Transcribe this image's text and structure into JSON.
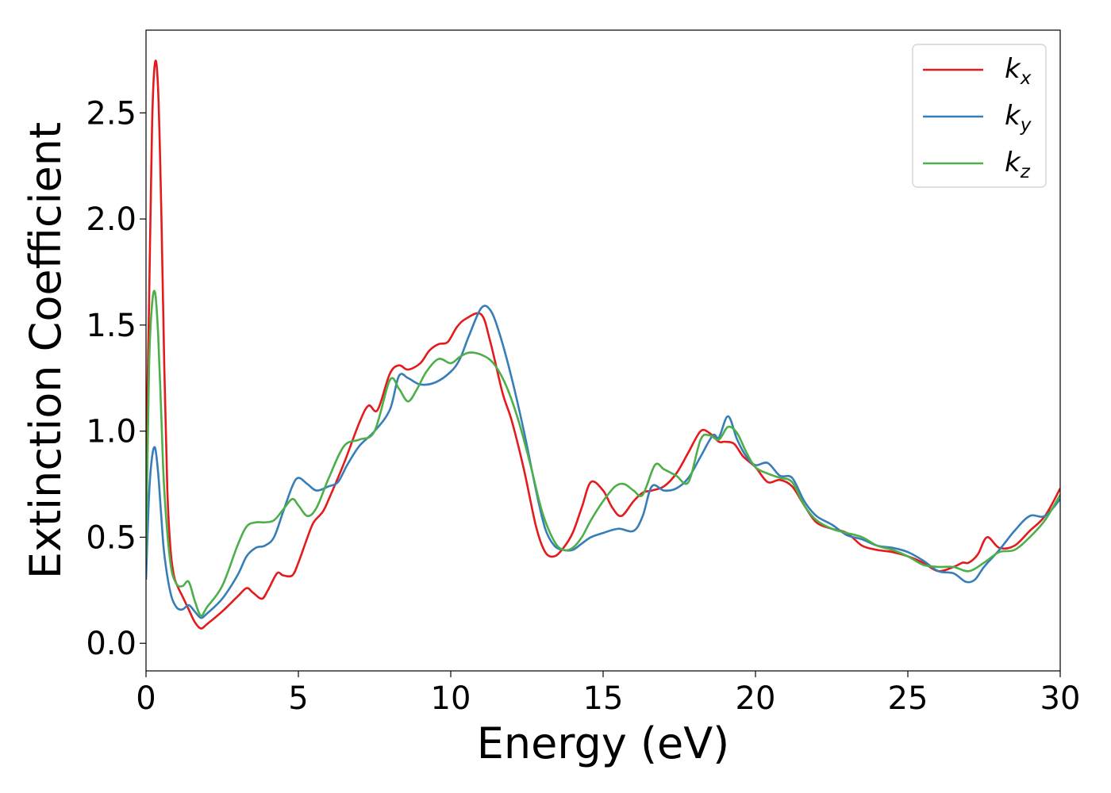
{
  "chart_data": {
    "type": "line",
    "title": "",
    "xlabel": "Energy (eV)",
    "ylabel": "Extinction Coefficient",
    "xlim": [
      0,
      30
    ],
    "ylim": [
      -0.13,
      2.89
    ],
    "xticks": [
      0,
      5,
      10,
      15,
      20,
      25,
      30
    ],
    "xtick_labels": [
      "0",
      "5",
      "10",
      "15",
      "20",
      "25",
      "30"
    ],
    "yticks": [
      0.0,
      0.5,
      1.0,
      1.5,
      2.0,
      2.5
    ],
    "ytick_labels": [
      "0.0",
      "0.5",
      "1.0",
      "1.5",
      "2.0",
      "2.5"
    ],
    "grid": false,
    "legend_position": "top-right",
    "series": [
      {
        "name": "k_x",
        "label_main": "k",
        "label_sub": "x",
        "color": "#e41a1c",
        "x": [
          0,
          0.1,
          0.2,
          0.3,
          0.4,
          0.5,
          0.6,
          0.7,
          0.8,
          0.9,
          1.0,
          1.2,
          1.4,
          1.6,
          1.8,
          2.0,
          2.5,
          3.0,
          3.3,
          3.5,
          3.8,
          4.0,
          4.3,
          4.5,
          4.8,
          5.0,
          5.3,
          5.5,
          5.8,
          6.0,
          6.5,
          7.0,
          7.3,
          7.6,
          8.0,
          8.3,
          8.6,
          9.0,
          9.3,
          9.6,
          9.9,
          10.2,
          10.5,
          11.0,
          11.3,
          11.7,
          12.0,
          12.4,
          12.8,
          13.1,
          13.4,
          13.7,
          14.0,
          14.3,
          14.6,
          15.0,
          15.3,
          15.6,
          16.0,
          16.3,
          16.6,
          17.0,
          17.4,
          17.8,
          18.2,
          18.5,
          18.8,
          19.0,
          19.3,
          19.6,
          20.0,
          20.4,
          20.8,
          21.2,
          21.6,
          22.0,
          22.5,
          23.0,
          23.5,
          24.0,
          24.5,
          25.0,
          25.5,
          26.0,
          26.5,
          26.8,
          27.0,
          27.3,
          27.6,
          28.0,
          28.5,
          29.0,
          29.5,
          30.0
        ],
        "y": [
          0.85,
          1.6,
          2.45,
          2.74,
          2.6,
          2.05,
          1.3,
          0.72,
          0.45,
          0.33,
          0.28,
          0.22,
          0.16,
          0.1,
          0.07,
          0.09,
          0.15,
          0.22,
          0.26,
          0.24,
          0.21,
          0.25,
          0.33,
          0.32,
          0.32,
          0.38,
          0.5,
          0.57,
          0.62,
          0.68,
          0.85,
          1.04,
          1.12,
          1.1,
          1.27,
          1.31,
          1.29,
          1.32,
          1.38,
          1.41,
          1.42,
          1.49,
          1.53,
          1.55,
          1.42,
          1.18,
          1.05,
          0.82,
          0.55,
          0.43,
          0.41,
          0.45,
          0.52,
          0.64,
          0.76,
          0.72,
          0.64,
          0.6,
          0.67,
          0.71,
          0.72,
          0.74,
          0.8,
          0.9,
          1.0,
          0.99,
          0.95,
          0.95,
          0.94,
          0.88,
          0.83,
          0.76,
          0.77,
          0.74,
          0.65,
          0.57,
          0.54,
          0.52,
          0.46,
          0.44,
          0.43,
          0.41,
          0.38,
          0.34,
          0.36,
          0.38,
          0.38,
          0.42,
          0.5,
          0.45,
          0.46,
          0.53,
          0.6,
          0.73
        ]
      },
      {
        "name": "k_y",
        "label_main": "k",
        "label_sub": "y",
        "color": "#377eb8",
        "x": [
          0,
          0.1,
          0.2,
          0.3,
          0.4,
          0.5,
          0.6,
          0.8,
          1.0,
          1.2,
          1.4,
          1.6,
          1.8,
          2.0,
          2.5,
          3.0,
          3.3,
          3.6,
          3.9,
          4.2,
          4.5,
          4.8,
          5.0,
          5.3,
          5.6,
          6.0,
          6.3,
          6.6,
          7.0,
          7.5,
          8.0,
          8.3,
          8.6,
          9.0,
          9.5,
          10.0,
          10.3,
          10.6,
          11.0,
          11.3,
          11.6,
          12.0,
          12.4,
          12.8,
          13.1,
          13.4,
          13.7,
          14.0,
          14.3,
          14.6,
          15.0,
          15.5,
          16.0,
          16.3,
          16.6,
          17.0,
          17.4,
          17.8,
          18.2,
          18.6,
          18.8,
          19.1,
          19.4,
          19.7,
          20.0,
          20.4,
          20.8,
          21.2,
          21.6,
          22.0,
          22.5,
          23.0,
          23.5,
          24.0,
          24.5,
          25.0,
          25.5,
          26.0,
          26.5,
          26.9,
          27.2,
          27.5,
          28.0,
          28.5,
          29.0,
          29.5,
          30.0
        ],
        "y": [
          0.3,
          0.7,
          0.88,
          0.92,
          0.8,
          0.6,
          0.42,
          0.24,
          0.17,
          0.16,
          0.18,
          0.15,
          0.12,
          0.14,
          0.21,
          0.32,
          0.41,
          0.45,
          0.46,
          0.5,
          0.62,
          0.74,
          0.78,
          0.75,
          0.72,
          0.74,
          0.76,
          0.84,
          0.93,
          1.0,
          1.1,
          1.26,
          1.25,
          1.22,
          1.23,
          1.28,
          1.34,
          1.45,
          1.58,
          1.57,
          1.46,
          1.25,
          1.0,
          0.72,
          0.54,
          0.46,
          0.44,
          0.44,
          0.47,
          0.5,
          0.52,
          0.54,
          0.53,
          0.6,
          0.74,
          0.72,
          0.73,
          0.78,
          0.88,
          0.98,
          0.97,
          1.07,
          0.96,
          0.88,
          0.84,
          0.85,
          0.79,
          0.78,
          0.67,
          0.6,
          0.56,
          0.51,
          0.49,
          0.46,
          0.45,
          0.43,
          0.39,
          0.34,
          0.33,
          0.29,
          0.3,
          0.36,
          0.44,
          0.53,
          0.6,
          0.6,
          0.68
        ]
      },
      {
        "name": "k_z",
        "label_main": "k",
        "label_sub": "z",
        "color": "#4daf4a",
        "x": [
          0,
          0.1,
          0.2,
          0.3,
          0.4,
          0.5,
          0.6,
          0.8,
          1.0,
          1.2,
          1.4,
          1.6,
          1.8,
          2.0,
          2.5,
          3.0,
          3.3,
          3.6,
          3.9,
          4.2,
          4.5,
          4.8,
          5.0,
          5.3,
          5.6,
          6.0,
          6.5,
          7.0,
          7.5,
          8.0,
          8.3,
          8.6,
          8.9,
          9.2,
          9.6,
          10.0,
          10.3,
          10.6,
          11.0,
          11.4,
          11.8,
          12.2,
          12.6,
          13.0,
          13.4,
          13.7,
          14.0,
          14.3,
          14.6,
          15.0,
          15.4,
          15.7,
          16.0,
          16.3,
          16.7,
          17.0,
          17.4,
          17.8,
          18.2,
          18.5,
          18.8,
          19.1,
          19.4,
          19.7,
          20.0,
          20.4,
          20.8,
          21.2,
          21.6,
          22.0,
          22.5,
          23.0,
          23.5,
          24.0,
          24.5,
          25.0,
          25.5,
          26.0,
          26.5,
          27.0,
          27.5,
          28.0,
          28.5,
          29.0,
          29.5,
          30.0
        ],
        "y": [
          0.4,
          1.3,
          1.6,
          1.65,
          1.45,
          1.08,
          0.72,
          0.38,
          0.28,
          0.27,
          0.29,
          0.2,
          0.13,
          0.17,
          0.27,
          0.46,
          0.55,
          0.57,
          0.57,
          0.58,
          0.63,
          0.68,
          0.65,
          0.6,
          0.64,
          0.78,
          0.93,
          0.96,
          1.0,
          1.24,
          1.2,
          1.14,
          1.2,
          1.28,
          1.34,
          1.32,
          1.35,
          1.37,
          1.36,
          1.32,
          1.22,
          1.06,
          0.85,
          0.62,
          0.48,
          0.44,
          0.45,
          0.5,
          0.58,
          0.67,
          0.74,
          0.75,
          0.72,
          0.7,
          0.84,
          0.82,
          0.79,
          0.76,
          0.96,
          0.98,
          0.96,
          1.02,
          0.99,
          0.9,
          0.83,
          0.8,
          0.78,
          0.76,
          0.65,
          0.58,
          0.54,
          0.52,
          0.5,
          0.46,
          0.44,
          0.41,
          0.37,
          0.36,
          0.36,
          0.34,
          0.38,
          0.43,
          0.44,
          0.5,
          0.58,
          0.7
        ]
      }
    ]
  }
}
